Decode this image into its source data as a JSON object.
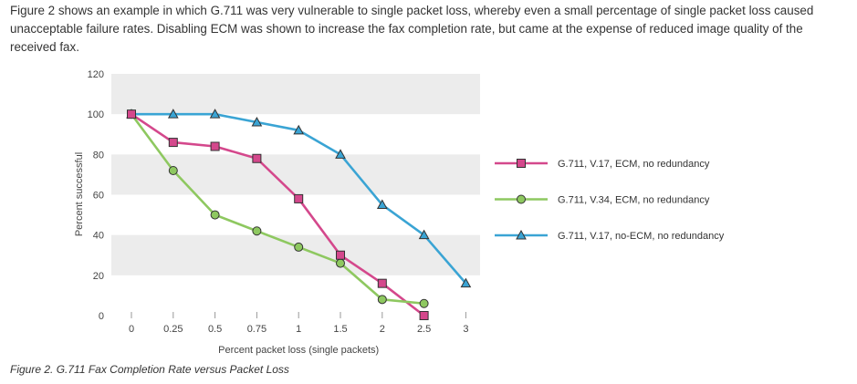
{
  "intro_text": "Figure 2 shows an example in which G.711 was very vulnerable to single packet loss, whereby even a small percentage of single packet loss caused unacceptable failure rates. Disabling ECM was shown to increase the fax completion rate, but came at the expense of reduced image quality of the received fax.",
  "caption": "Figure 2. G.711 Fax Completion Rate versus Packet Loss",
  "chart_data": {
    "type": "line",
    "title": "",
    "xlabel": "Percent packet loss (single packets)",
    "ylabel": "Percent successful",
    "x": [
      0,
      0.25,
      0.5,
      0.75,
      1,
      1.5,
      2,
      2.5,
      3
    ],
    "x_tick_labels": [
      "0",
      "0.25",
      "0.5",
      "0.75",
      "1",
      "1.5",
      "2",
      "2.5",
      "3"
    ],
    "y_ticks": [
      0,
      20,
      40,
      60,
      80,
      100,
      120
    ],
    "ylim": [
      0,
      120
    ],
    "grid": "alternating horizontal bands",
    "legend_position": "right",
    "series": [
      {
        "name": "G.711, V.17, ECM, no redundancy",
        "color": "#d4488c",
        "marker": "square",
        "values": [
          100,
          86,
          84,
          78,
          58,
          30,
          16,
          0,
          null
        ]
      },
      {
        "name": "G.711, V.34, ECM, no redundancy",
        "color": "#8ec860",
        "marker": "circle",
        "values": [
          100,
          72,
          50,
          42,
          34,
          26,
          8,
          6,
          null
        ]
      },
      {
        "name": "G.711, V.17, no-ECM, no redundancy",
        "color": "#3aa4d4",
        "marker": "triangle",
        "values": [
          100,
          100,
          100,
          96,
          92,
          80,
          55,
          40,
          16
        ]
      }
    ]
  }
}
